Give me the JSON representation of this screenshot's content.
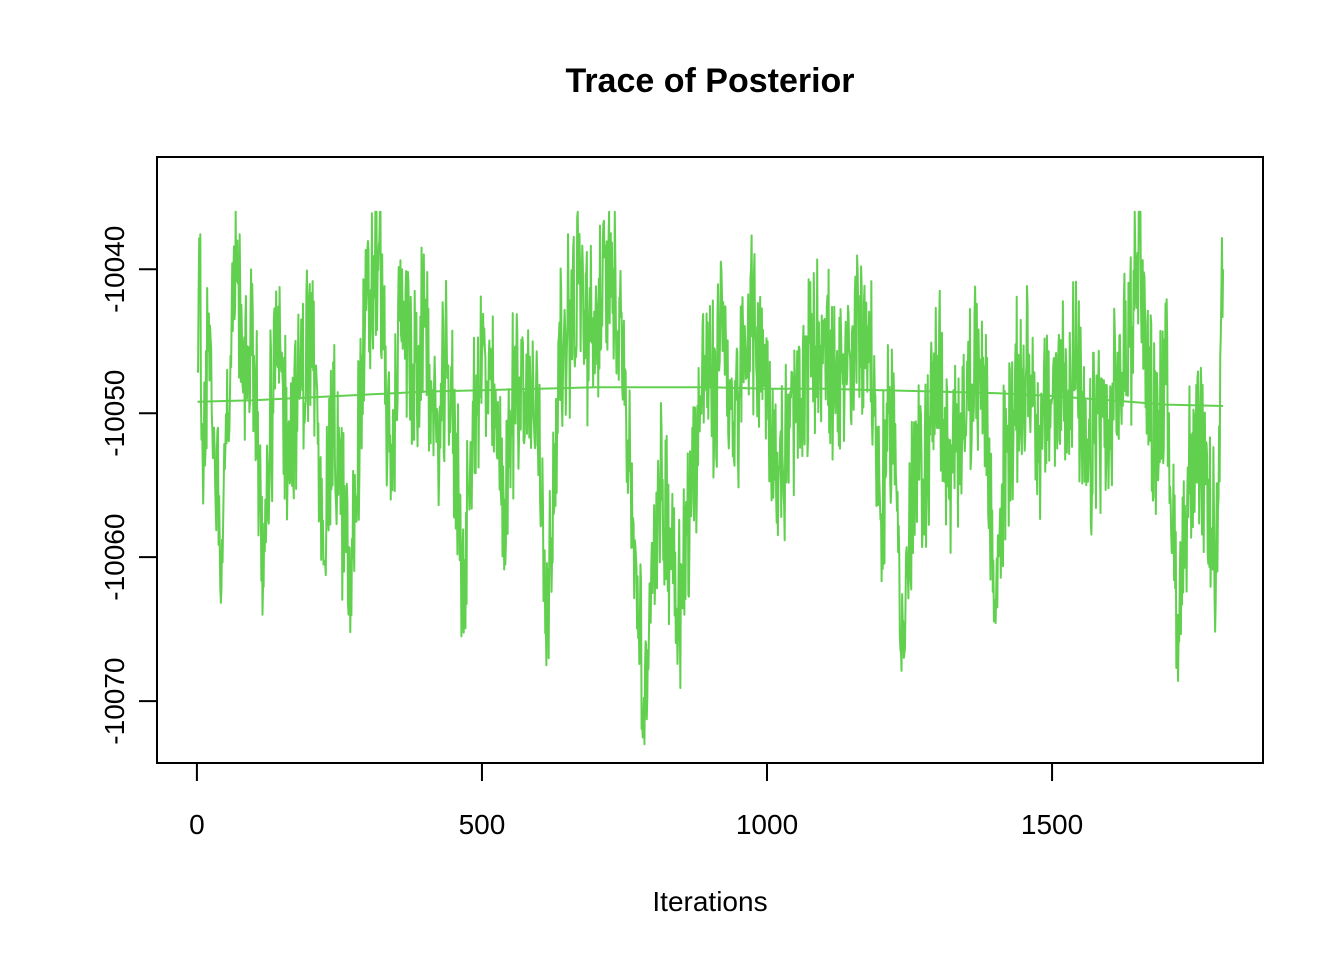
{
  "chart_data": {
    "type": "line",
    "title": "Trace of Posterior",
    "xlabel": "Iterations",
    "ylabel": "",
    "xlim": [
      -70,
      1870
    ],
    "ylim": [
      -10074.3,
      -10032.2
    ],
    "x_ticks": [
      0,
      500,
      1000,
      1500
    ],
    "x_tick_labels": [
      "0",
      "500",
      "1000",
      "1500"
    ],
    "y_ticks": [
      -10040,
      -10050,
      -10060,
      -10070
    ],
    "y_tick_labels": [
      "-10040",
      "-10050",
      "-10060",
      "-10070"
    ],
    "grid": false,
    "legend": "none",
    "series": [
      {
        "kind": "trace",
        "color": "#61D04F",
        "x_start": 1,
        "x_end": 1800,
        "key_points": [
          [
            1,
            -10047
          ],
          [
            5,
            -10040
          ],
          [
            10,
            -10053
          ],
          [
            20,
            -10044
          ],
          [
            30,
            -10051
          ],
          [
            40,
            -10059
          ],
          [
            55,
            -10050
          ],
          [
            68,
            -10036
          ],
          [
            72,
            -10041
          ],
          [
            80,
            -10048
          ],
          [
            100,
            -10046
          ],
          [
            110,
            -10054
          ],
          [
            115,
            -10064
          ],
          [
            120,
            -10056
          ],
          [
            140,
            -10045
          ],
          [
            160,
            -10052
          ],
          [
            180,
            -10049
          ],
          [
            200,
            -10043
          ],
          [
            220,
            -10058
          ],
          [
            240,
            -10051
          ],
          [
            270,
            -10062
          ],
          [
            290,
            -10046
          ],
          [
            320,
            -10038
          ],
          [
            340,
            -10056
          ],
          [
            360,
            -10040
          ],
          [
            380,
            -10049
          ],
          [
            400,
            -10044
          ],
          [
            420,
            -10052
          ],
          [
            440,
            -10047
          ],
          [
            460,
            -10056
          ],
          [
            470,
            -10063
          ],
          [
            480,
            -10052
          ],
          [
            500,
            -10046
          ],
          [
            520,
            -10050
          ],
          [
            540,
            -10056
          ],
          [
            560,
            -10047
          ],
          [
            580,
            -10049
          ],
          [
            600,
            -10050
          ],
          [
            615,
            -10065
          ],
          [
            630,
            -10049
          ],
          [
            650,
            -10044
          ],
          [
            670,
            -10041
          ],
          [
            690,
            -10045
          ],
          [
            710,
            -10042
          ],
          [
            730,
            -10040
          ],
          [
            745,
            -10043
          ],
          [
            760,
            -10054
          ],
          [
            775,
            -10064
          ],
          [
            785,
            -10073
          ],
          [
            795,
            -10062
          ],
          [
            810,
            -10055
          ],
          [
            830,
            -10058
          ],
          [
            850,
            -10063
          ],
          [
            870,
            -10054
          ],
          [
            890,
            -10046
          ],
          [
            910,
            -10050
          ],
          [
            920,
            -10040
          ],
          [
            940,
            -10053
          ],
          [
            960,
            -10045
          ],
          [
            980,
            -10044
          ],
          [
            1000,
            -10048
          ],
          [
            1020,
            -10055
          ],
          [
            1040,
            -10051
          ],
          [
            1060,
            -10049
          ],
          [
            1080,
            -10046
          ],
          [
            1100,
            -10044
          ],
          [
            1120,
            -10050
          ],
          [
            1140,
            -10048
          ],
          [
            1160,
            -10043
          ],
          [
            1180,
            -10045
          ],
          [
            1200,
            -10057
          ],
          [
            1220,
            -10049
          ],
          [
            1240,
            -10067
          ],
          [
            1255,
            -10055
          ],
          [
            1280,
            -10053
          ],
          [
            1300,
            -10046
          ],
          [
            1320,
            -10056
          ],
          [
            1340,
            -10050
          ],
          [
            1360,
            -10048
          ],
          [
            1380,
            -10047
          ],
          [
            1400,
            -10063
          ],
          [
            1420,
            -10052
          ],
          [
            1440,
            -10049
          ],
          [
            1460,
            -10046
          ],
          [
            1480,
            -10052
          ],
          [
            1500,
            -10049
          ],
          [
            1520,
            -10048
          ],
          [
            1540,
            -10046
          ],
          [
            1560,
            -10055
          ],
          [
            1580,
            -10050
          ],
          [
            1600,
            -10052
          ],
          [
            1620,
            -10047
          ],
          [
            1640,
            -10044
          ],
          [
            1652,
            -10036
          ],
          [
            1665,
            -10047
          ],
          [
            1680,
            -10051
          ],
          [
            1700,
            -10048
          ],
          [
            1720,
            -10064
          ],
          [
            1740,
            -10054
          ],
          [
            1760,
            -10053
          ],
          [
            1780,
            -10058
          ],
          [
            1790,
            -10061
          ],
          [
            1800,
            -10040
          ]
        ],
        "range": [
          -10073,
          -10036
        ],
        "mean": -10048.8
      },
      {
        "kind": "smooth",
        "color": "#61D04F",
        "x": [
          1,
          100,
          200,
          300,
          400,
          500,
          600,
          700,
          800,
          900,
          1000,
          1100,
          1200,
          1300,
          1400,
          1500,
          1600,
          1700,
          1800
        ],
        "y": [
          -10049.2,
          -10049.1,
          -10048.9,
          -10048.7,
          -10048.5,
          -10048.4,
          -10048.3,
          -10048.2,
          -10048.2,
          -10048.2,
          -10048.3,
          -10048.3,
          -10048.4,
          -10048.5,
          -10048.6,
          -10048.8,
          -10049.1,
          -10049.4,
          -10049.5
        ]
      }
    ]
  }
}
